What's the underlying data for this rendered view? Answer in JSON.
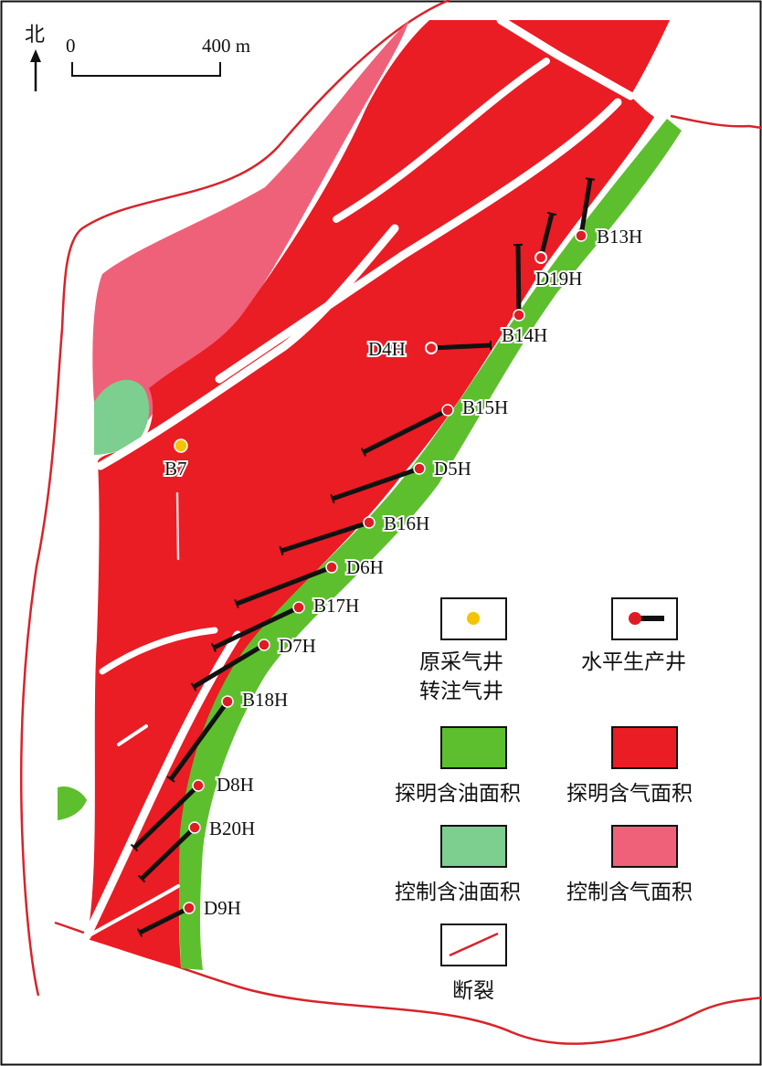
{
  "north": {
    "label": "北"
  },
  "scale_bar": {
    "start_label": "0",
    "end_label": "400 m"
  },
  "gas_well": {
    "name": "B7",
    "color": "#f5c400"
  },
  "horizontal_wells": [
    {
      "name": "B13H",
      "hollow": false
    },
    {
      "name": "D19H",
      "hollow": true
    },
    {
      "name": "B14H",
      "hollow": false
    },
    {
      "name": "D4H",
      "hollow": true
    },
    {
      "name": "B15H",
      "hollow": false
    },
    {
      "name": "D5H",
      "hollow": false
    },
    {
      "name": "B16H",
      "hollow": false
    },
    {
      "name": "D6H",
      "hollow": false
    },
    {
      "name": "B17H",
      "hollow": false
    },
    {
      "name": "D7H",
      "hollow": false
    },
    {
      "name": "B18H",
      "hollow": false
    },
    {
      "name": "D8H",
      "hollow": false
    },
    {
      "name": "B20H",
      "hollow": false
    },
    {
      "name": "D9H",
      "hollow": false
    }
  ],
  "legend": {
    "gas_well_line1": "原采气井",
    "gas_well_line2": "转注气井",
    "horizontal_well": "水平生产井",
    "proven_oil": "探明含油面积",
    "proven_gas": "探明含气面积",
    "controlled_oil": "控制含油面积",
    "controlled_gas": "控制含气面积",
    "fault": "断裂"
  },
  "colors": {
    "proven_gas": "#ea1c24",
    "proven_oil": "#5ebf2e",
    "controlled_gas": "#ef6179",
    "controlled_oil": "#7ccf8e",
    "boundary": "#d8232a",
    "well": "#e01b24",
    "horizontal_line": "#111111"
  }
}
